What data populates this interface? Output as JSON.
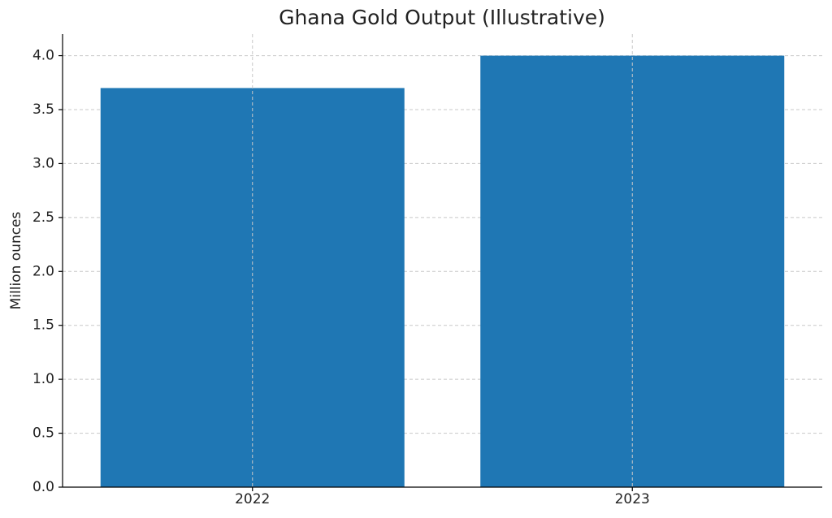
{
  "chart_data": {
    "type": "bar",
    "title": "Ghana Gold Output (Illustrative)",
    "ylabel": "Million ounces",
    "categories": [
      "2022",
      "2023"
    ],
    "values": [
      3.7,
      4.0
    ],
    "color": "#1f77b4",
    "ylim": [
      0,
      4.2
    ],
    "yticks": [
      {
        "value": 0,
        "label": "0.0"
      },
      0.5,
      {
        "value": 1,
        "label": "1.0"
      },
      1.5,
      {
        "value": 2,
        "label": "2.0"
      },
      2.5,
      {
        "value": 3,
        "label": "3.0"
      },
      3.5,
      {
        "value": 4,
        "label": "4.0"
      }
    ],
    "grid": true
  }
}
